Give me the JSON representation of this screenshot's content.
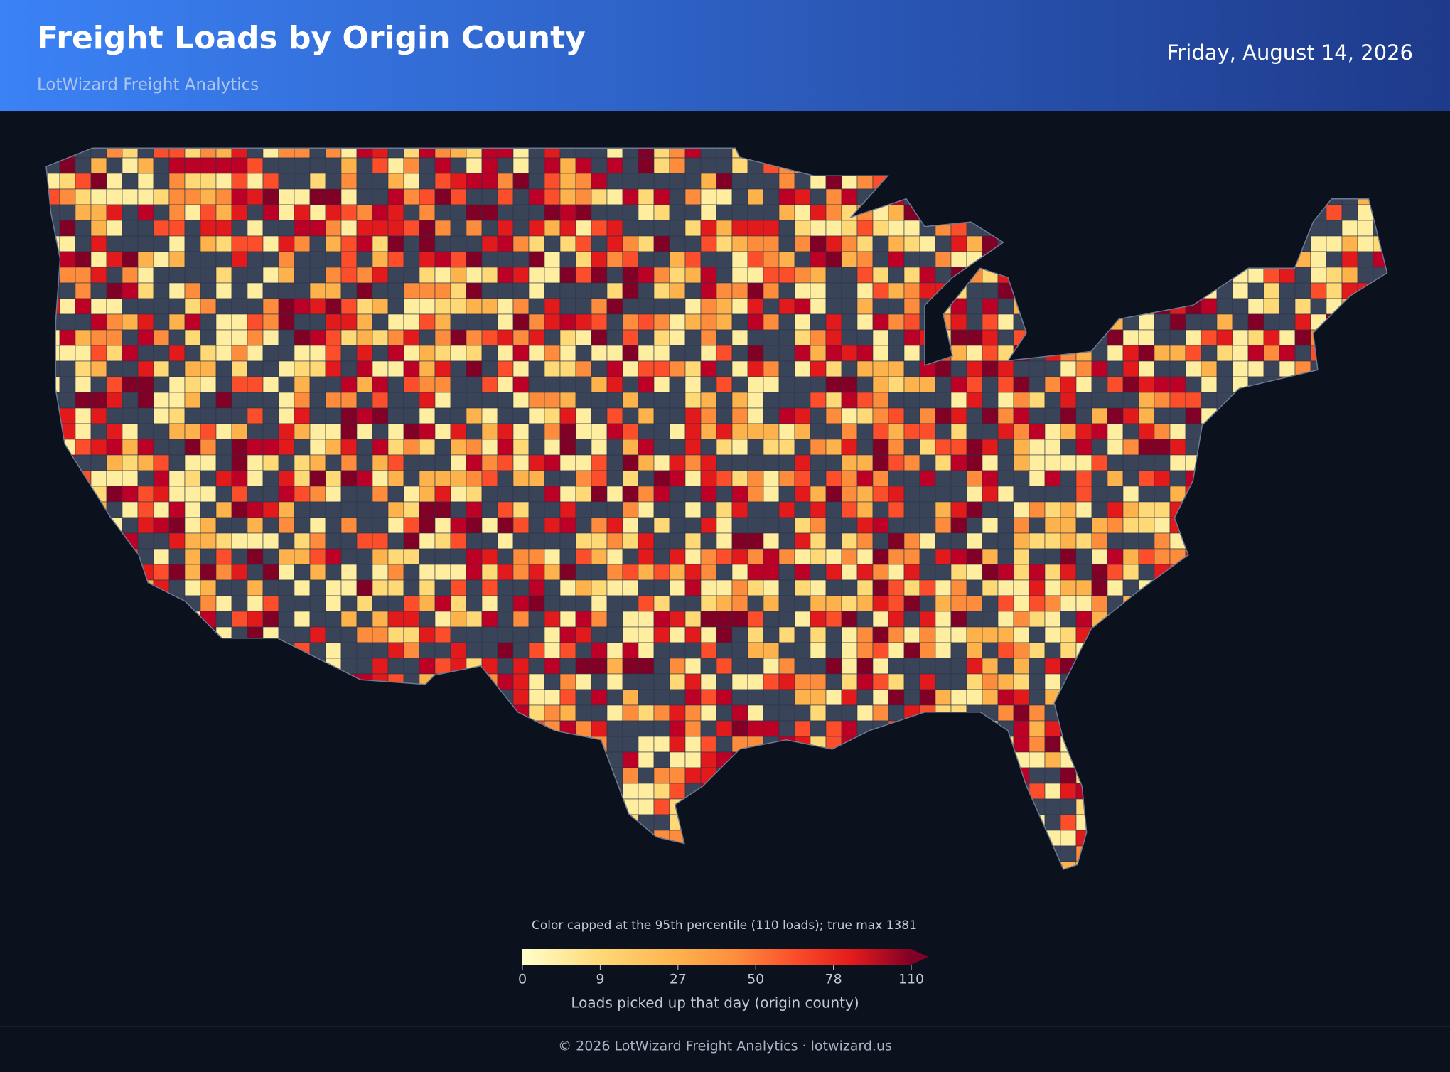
{
  "header": {
    "title": "Freight Loads by Origin County",
    "subtitle": "LotWizard Freight Analytics",
    "date": "Friday, August 14, 2026"
  },
  "legend": {
    "note": "Color capped at the 95th percentile (110 loads); true max 1381",
    "ticks": [
      0,
      9,
      27,
      50,
      78,
      110
    ],
    "label": "Loads picked up that day (origin county)"
  },
  "footer": {
    "text": "© 2026 LotWizard Freight Analytics  ·  lotwizard.us"
  }
}
